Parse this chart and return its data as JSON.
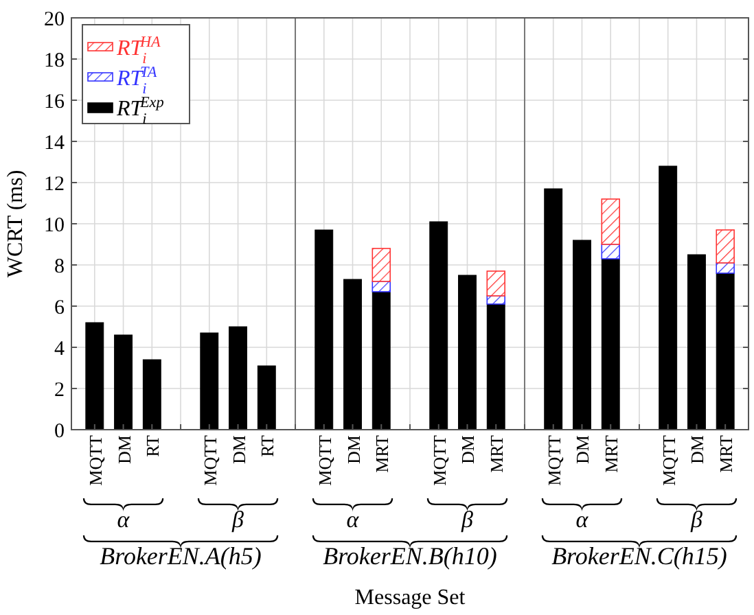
{
  "chart_data": {
    "type": "bar",
    "stacked": true,
    "ylabel": "WCRT (ms)",
    "xlabel": "Message Set",
    "categories": [
      "MQTT",
      "DM",
      "RT",
      null,
      "MQTT",
      "DM",
      "RT",
      null,
      "MQTT",
      "DM",
      "MRT",
      null,
      "MQTT",
      "DM",
      "MRT",
      null,
      "MQTT",
      "DM",
      "MRT",
      null,
      "MQTT",
      "DM",
      "MRT"
    ],
    "series": [
      {
        "name": "RT$_{i}$$^{Exp}$",
        "color": "#000000",
        "values": [
          5.2,
          4.6,
          3.4,
          null,
          4.7,
          5.0,
          3.1,
          null,
          9.7,
          7.3,
          6.7,
          null,
          10.1,
          7.5,
          6.1,
          null,
          11.7,
          9.2,
          8.3,
          null,
          12.8,
          8.5,
          7.6
        ]
      },
      {
        "name": "RT$_{i}$$^{TA}$",
        "color": "#3333ff",
        "values": [
          null,
          null,
          null,
          null,
          null,
          null,
          null,
          null,
          null,
          null,
          0.5,
          null,
          null,
          null,
          0.4,
          null,
          null,
          null,
          0.7,
          null,
          null,
          null,
          0.5
        ]
      },
      {
        "name": "RT$_{i}$$^{HA}$",
        "color": "#ff3333",
        "values": [
          null,
          null,
          null,
          null,
          null,
          null,
          null,
          null,
          null,
          null,
          1.6,
          null,
          null,
          null,
          1.2,
          null,
          null,
          null,
          2.2,
          null,
          null,
          null,
          1.6
        ]
      }
    ],
    "ylim": [
      0,
      20
    ],
    "yticks": [
      0,
      2,
      4,
      6,
      8,
      10,
      12,
      14,
      16,
      18,
      20
    ],
    "grid": true,
    "legend": "top left",
    "annotations": [
      "α",
      "β",
      "α",
      "β",
      "α",
      "β",
      "BrokerEN.A(h5)",
      "BrokerEN.B(h10)",
      "BrokerEN.C(h15)"
    ]
  }
}
